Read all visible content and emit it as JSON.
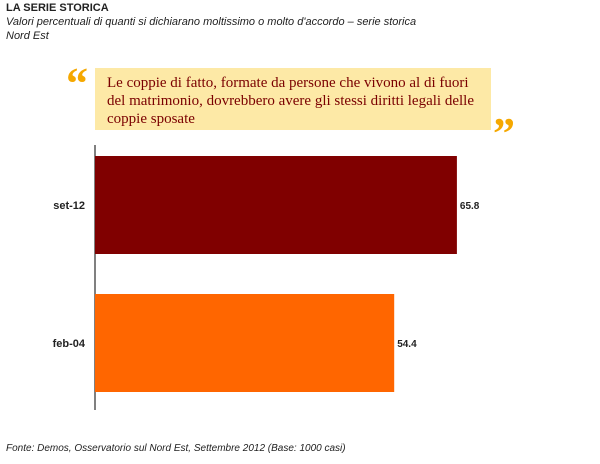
{
  "header": {
    "title": "LA SERIE STORICA",
    "subtitle_line1": "Valori percentuali di quanti si dichiarano moltissimo o molto d'accordo – serie storica",
    "subtitle_line2": "Nord Est"
  },
  "quote": {
    "text": "Le coppie di fatto, formate da persone che vivono al di fuori del matrimonio, dovrebbero avere gli stessi diritti legali delle coppie sposate",
    "open_mark": "“",
    "close_mark": "”"
  },
  "chart_data": {
    "type": "bar",
    "orientation": "horizontal",
    "categories": [
      "set-12",
      "feb-04"
    ],
    "values": [
      65.8,
      54.4
    ],
    "value_labels": [
      "65.8",
      "54.4"
    ],
    "colors": [
      "#800000",
      "#ff6600"
    ],
    "xlim": [
      0,
      100
    ],
    "grid": false,
    "title": "",
    "xlabel": "",
    "ylabel": ""
  },
  "footer": {
    "source": "Fonte: Demos, Osservatorio sul Nord Est, Settembre 2012 (Base: 1000 casi)"
  }
}
